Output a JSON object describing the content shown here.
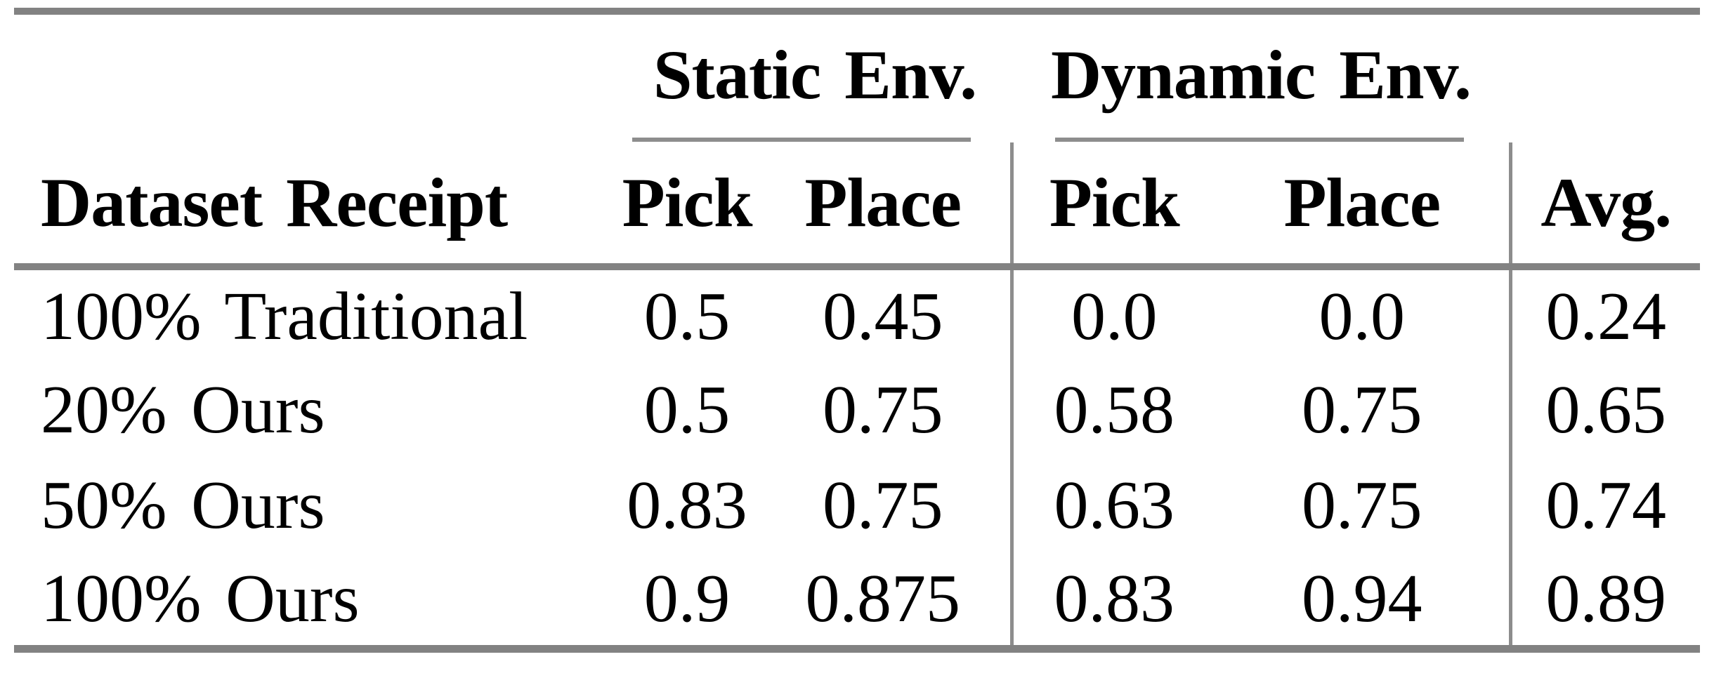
{
  "table": {
    "row_header": "Dataset Receipt",
    "groups": [
      {
        "label": "Static Env."
      },
      {
        "label": "Dynamic Env."
      }
    ],
    "columns": [
      "Pick",
      "Place",
      "Pick",
      "Place",
      "Avg."
    ],
    "rows": [
      {
        "label": "100% Traditional",
        "values": [
          "0.5",
          "0.45",
          "0.0",
          "0.0",
          "0.24"
        ]
      },
      {
        "label": "20% Ours",
        "values": [
          "0.5",
          "0.75",
          "0.58",
          "0.75",
          "0.65"
        ]
      },
      {
        "label": "50% Ours",
        "values": [
          "0.83",
          "0.75",
          "0.63",
          "0.75",
          "0.74"
        ]
      },
      {
        "label": "100% Ours",
        "values": [
          "0.9",
          "0.875",
          "0.83",
          "0.94",
          "0.89"
        ]
      }
    ],
    "colors": {
      "rule_gray": "#828282",
      "thin_rule_gray": "#8d8d8d",
      "text": "#000000",
      "background": "#ffffff"
    }
  },
  "chart_data": {
    "type": "table",
    "title": "",
    "column_groups": [
      {
        "label": "Static Env.",
        "columns": [
          "Pick",
          "Place"
        ]
      },
      {
        "label": "Dynamic Env.",
        "columns": [
          "Pick",
          "Place"
        ]
      }
    ],
    "columns": [
      "Dataset Receipt",
      "Static Pick",
      "Static Place",
      "Dynamic Pick",
      "Dynamic Place",
      "Avg."
    ],
    "rows": [
      [
        "100% Traditional",
        0.5,
        0.45,
        0.0,
        0.0,
        0.24
      ],
      [
        "20% Ours",
        0.5,
        0.75,
        0.58,
        0.75,
        0.65
      ],
      [
        "50% Ours",
        0.83,
        0.75,
        0.63,
        0.75,
        0.74
      ],
      [
        "100% Ours",
        0.9,
        0.875,
        0.83,
        0.94,
        0.89
      ]
    ]
  }
}
